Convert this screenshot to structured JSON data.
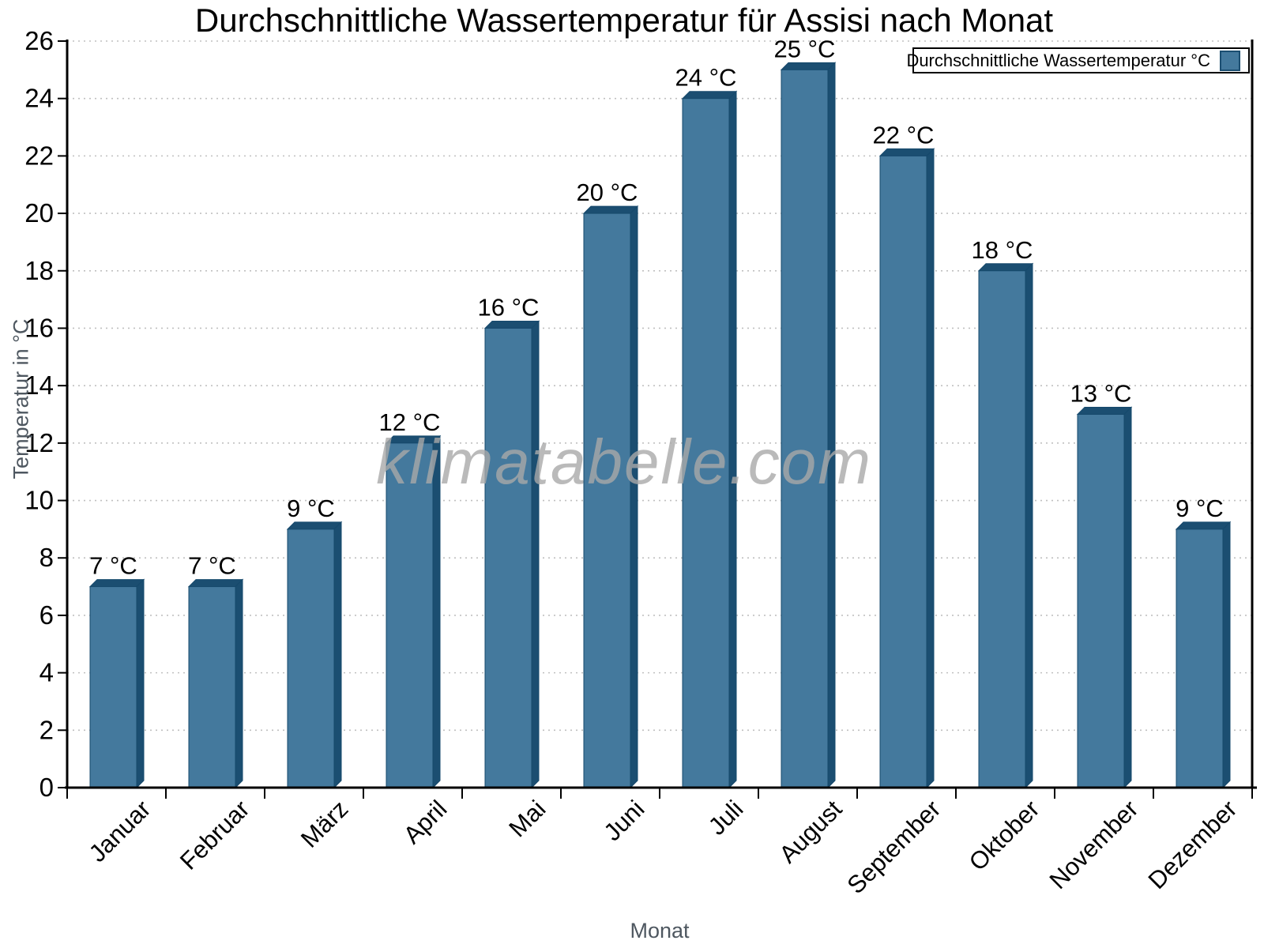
{
  "title": "Durchschnittliche Wassertemperatur für Assisi nach Monat",
  "watermark": "klimatabelle.com",
  "legend": {
    "label": "Durchschnittliche Wassertemperatur °C",
    "swatch_color": "#44799d",
    "swatch_border": "#1b4e71",
    "position": "top-right"
  },
  "colors": {
    "bar_face": "#44799d",
    "bar_edge": "#1b4e71",
    "bar_outline": "#16496c",
    "gridline": "#c0c0c0",
    "axis": "#000000",
    "axis_title_text": "#4e5760",
    "tick_label_text": "#000000",
    "watermark_text": "#a9a9a9"
  },
  "chart_data": {
    "type": "bar",
    "title": "Durchschnittliche Wassertemperatur für Assisi nach Monat",
    "xlabel": "Monat",
    "ylabel": "Temperatur in °C",
    "categories": [
      "Januar",
      "Februar",
      "März",
      "April",
      "Mai",
      "Juni",
      "Juli",
      "August",
      "September",
      "Oktober",
      "November",
      "Dezember"
    ],
    "values": [
      7,
      7,
      9,
      12,
      16,
      20,
      24,
      25,
      22,
      18,
      13,
      9
    ],
    "bar_labels": [
      "7 °C",
      "7 °C",
      "9 °C",
      "12 °C",
      "16 °C",
      "20 °C",
      "24 °C",
      "25 °C",
      "22 °C",
      "18 °C",
      "13 °C",
      "9 °C"
    ],
    "unit": "°C",
    "ylim": [
      0,
      26
    ],
    "ytick_step": 2,
    "yticks": [
      0,
      2,
      4,
      6,
      8,
      10,
      12,
      14,
      16,
      18,
      20,
      22,
      24,
      26
    ],
    "grid": "horizontal-dotted",
    "style": "3d-bars",
    "legend_entries": [
      "Durchschnittliche Wassertemperatur °C"
    ],
    "legend_position": "top-right"
  }
}
